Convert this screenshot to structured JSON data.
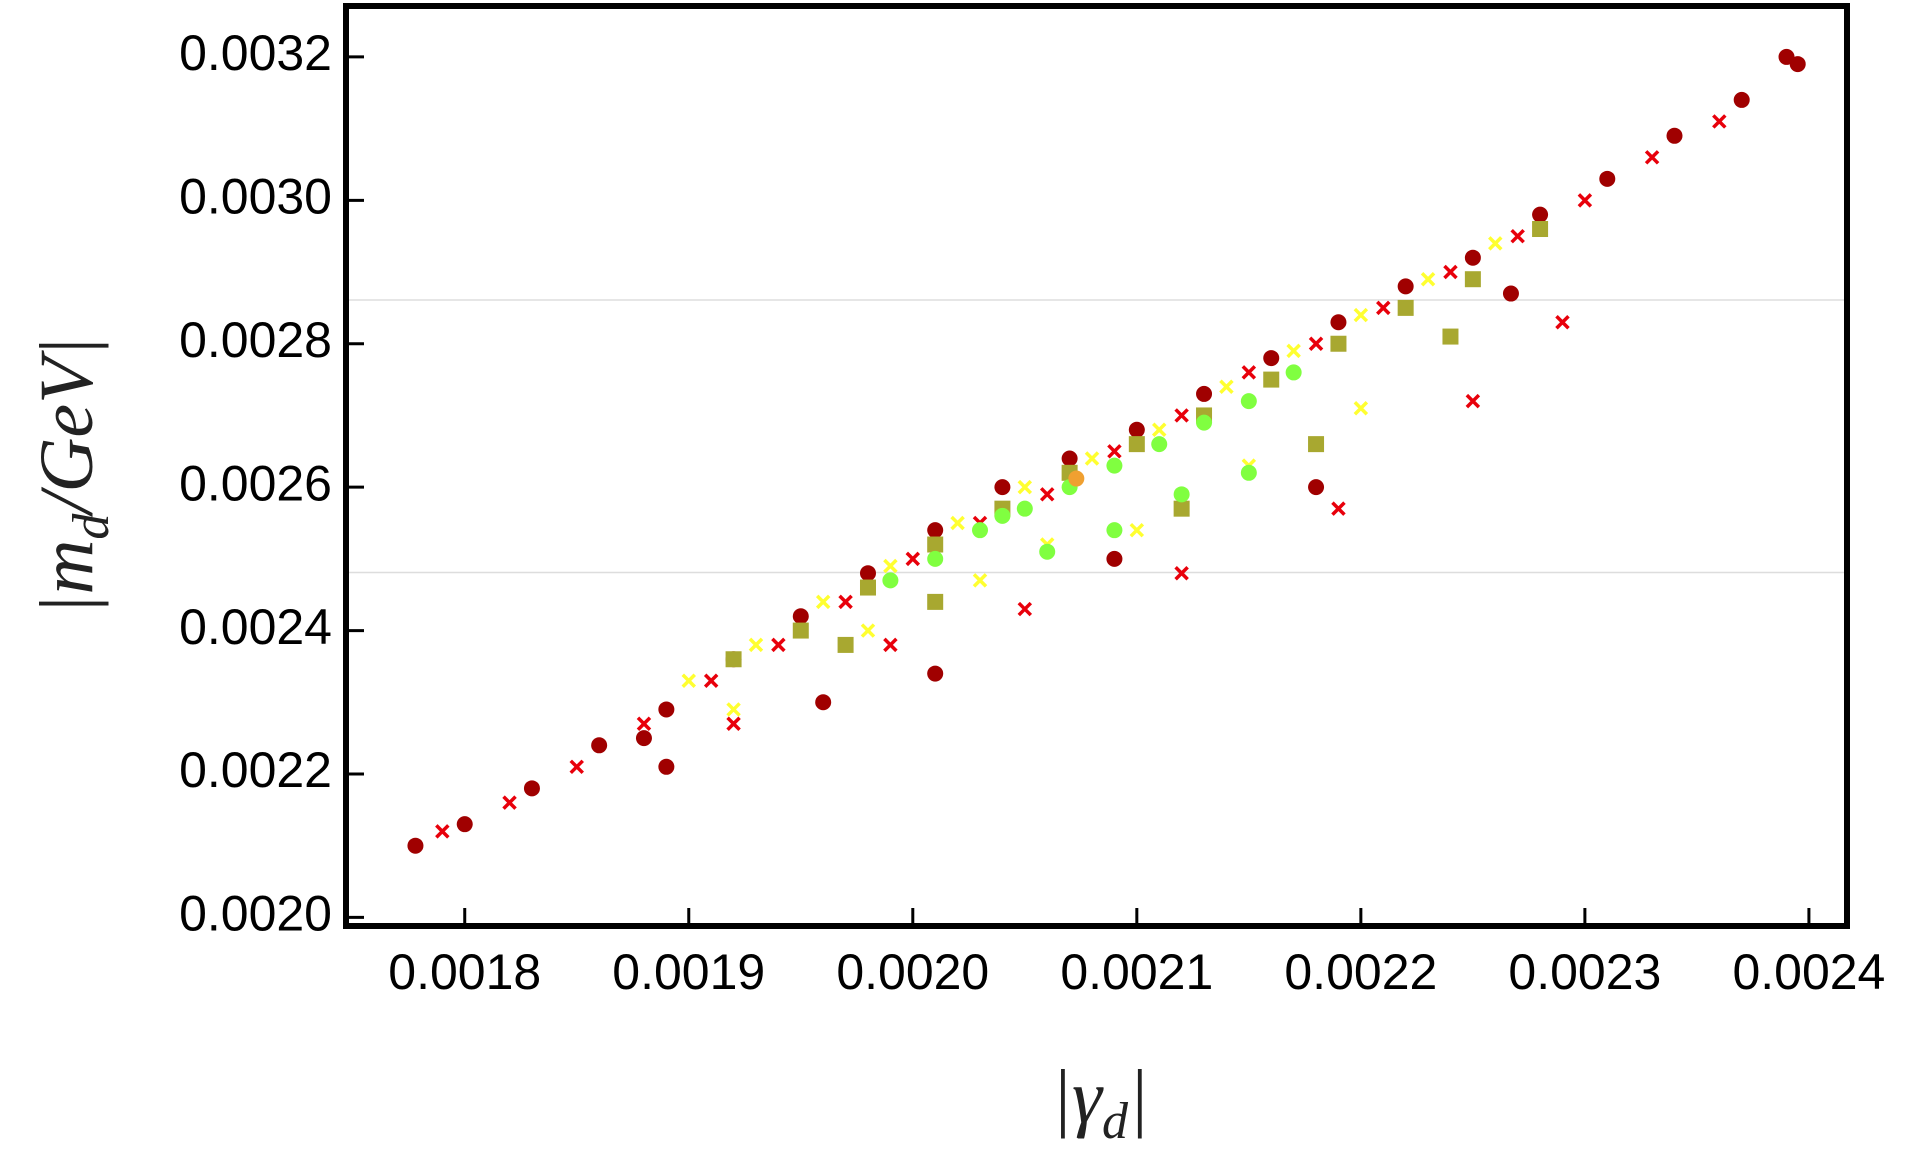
{
  "chart_data": {
    "type": "scatter",
    "x_label_parts": [
      "|γ",
      "d",
      "|"
    ],
    "y_label_parts": [
      "|m",
      "d",
      "/GeV|"
    ],
    "xlim": [
      0.001747,
      0.002417
    ],
    "ylim": [
      0.001988,
      0.003271
    ],
    "xticks": [
      0.0018,
      0.0019,
      {
        "value": 0.002,
        "label": "0.0020"
      },
      0.0021,
      0.0022,
      0.0023,
      0.0024
    ],
    "yticks": [
      {
        "value": 0.002,
        "label": "0.0020"
      },
      0.0022,
      0.0024,
      0.0026,
      0.0028,
      {
        "value": 0.003,
        "label": "0.0030"
      },
      0.0032
    ],
    "hlines": [
      0.002861,
      0.002481
    ],
    "hline_color": "#dddddd",
    "series": [
      {
        "color": "#a00000",
        "marker": "circle",
        "x": [
          0.001778,
          0.0018,
          0.00183,
          0.00186,
          0.00189,
          0.00192,
          0.00195,
          0.00198,
          0.00201,
          0.00204,
          0.00207,
          0.0021,
          0.00213,
          0.00216,
          0.00219,
          0.00222,
          0.00225,
          0.00228,
          0.00231,
          0.00234,
          0.00237,
          0.00239,
          0.002395,
          0.00189,
          0.00196,
          0.00201,
          0.002267,
          0.00209,
          0.00218,
          0.00188
        ],
        "y": [
          0.0021,
          0.00213,
          0.00218,
          0.00224,
          0.00229,
          0.00236,
          0.00242,
          0.00248,
          0.00254,
          0.0026,
          0.00264,
          0.00268,
          0.00273,
          0.00278,
          0.00283,
          0.00288,
          0.00292,
          0.00298,
          0.00303,
          0.00309,
          0.00314,
          0.0032,
          0.00319,
          0.00221,
          0.0023,
          0.00234,
          0.00287,
          0.0025,
          0.0026,
          0.00225
        ]
      },
      {
        "color": "#e8000b",
        "marker": "cross",
        "x": [
          0.00179,
          0.00182,
          0.00185,
          0.00188,
          0.00191,
          0.00194,
          0.00197,
          0.002,
          0.00203,
          0.00206,
          0.00209,
          0.00212,
          0.00215,
          0.00218,
          0.00221,
          0.00224,
          0.00227,
          0.0023,
          0.00233,
          0.00236,
          0.00192,
          0.00199,
          0.00212,
          0.00225,
          0.00229,
          0.00219,
          0.00205
        ],
        "y": [
          0.00212,
          0.00216,
          0.00221,
          0.00227,
          0.00233,
          0.00238,
          0.00244,
          0.0025,
          0.00255,
          0.00259,
          0.00265,
          0.0027,
          0.00276,
          0.0028,
          0.00285,
          0.0029,
          0.00295,
          0.003,
          0.00306,
          0.00311,
          0.00227,
          0.00238,
          0.00248,
          0.00272,
          0.00283,
          0.00257,
          0.00243
        ]
      },
      {
        "color": "#ffff30",
        "marker": "cross",
        "x": [
          0.0019,
          0.00193,
          0.00196,
          0.00199,
          0.00202,
          0.00205,
          0.00208,
          0.00211,
          0.00214,
          0.00217,
          0.0022,
          0.00223,
          0.00226,
          0.00198,
          0.00203,
          0.0021,
          0.00215,
          0.0022,
          0.00192,
          0.00206
        ],
        "y": [
          0.00233,
          0.00238,
          0.00244,
          0.00249,
          0.00255,
          0.0026,
          0.00264,
          0.00268,
          0.00274,
          0.00279,
          0.00284,
          0.00289,
          0.00294,
          0.0024,
          0.00247,
          0.00254,
          0.00263,
          0.00271,
          0.00229,
          0.00252
        ]
      },
      {
        "color": "#a8a830",
        "marker": "square",
        "x": [
          0.00192,
          0.00195,
          0.00198,
          0.00201,
          0.00204,
          0.00207,
          0.0021,
          0.00213,
          0.00216,
          0.00219,
          0.00222,
          0.00225,
          0.00228,
          0.00224,
          0.00212,
          0.00218,
          0.00201,
          0.00197
        ],
        "y": [
          0.00236,
          0.0024,
          0.00246,
          0.00252,
          0.00257,
          0.00262,
          0.00266,
          0.0027,
          0.00275,
          0.0028,
          0.00285,
          0.00289,
          0.00296,
          0.00281,
          0.00257,
          0.00266,
          0.00244,
          0.00238
        ]
      },
      {
        "color": "#80ff40",
        "marker": "circle",
        "x": [
          0.00199,
          0.00201,
          0.00203,
          0.00205,
          0.00207,
          0.00209,
          0.00211,
          0.00213,
          0.00215,
          0.00217,
          0.00206,
          0.00209,
          0.00212,
          0.00215,
          0.00204
        ],
        "y": [
          0.00247,
          0.0025,
          0.00254,
          0.00257,
          0.0026,
          0.00263,
          0.00266,
          0.00269,
          0.00272,
          0.00276,
          0.00251,
          0.00254,
          0.00259,
          0.00262,
          0.00256
        ]
      },
      {
        "color": "#f0a030",
        "marker": "circle",
        "x": [
          0.002073
        ],
        "y": [
          0.002612
        ]
      }
    ]
  }
}
